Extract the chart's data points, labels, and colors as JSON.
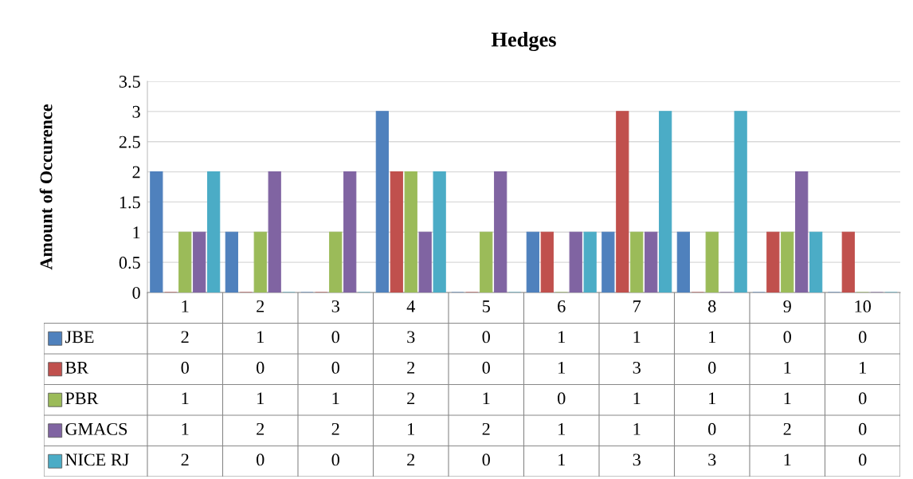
{
  "chart_data": {
    "type": "bar",
    "title": "Hedges",
    "ylabel": "Amount of Occurence",
    "categories": [
      "1",
      "2",
      "3",
      "4",
      "5",
      "6",
      "7",
      "8",
      "9",
      "10"
    ],
    "series": [
      {
        "name": "JBE",
        "color": "#4f81bd",
        "values": [
          2,
          1,
          0,
          3,
          0,
          1,
          1,
          1,
          0,
          0
        ]
      },
      {
        "name": "BR",
        "color": "#c0504d",
        "values": [
          0,
          0,
          0,
          2,
          0,
          1,
          3,
          0,
          1,
          1
        ]
      },
      {
        "name": "PBR",
        "color": "#9bbb59",
        "values": [
          1,
          1,
          1,
          2,
          1,
          0,
          1,
          1,
          1,
          0
        ]
      },
      {
        "name": "GMACS",
        "color": "#8064a2",
        "values": [
          1,
          2,
          2,
          1,
          2,
          1,
          1,
          0,
          2,
          0
        ]
      },
      {
        "name": "NICE RJ",
        "color": "#4bacc6",
        "values": [
          2,
          0,
          0,
          2,
          0,
          1,
          3,
          3,
          1,
          0
        ]
      }
    ],
    "ylim": [
      0,
      3.5
    ],
    "yticks": [
      0,
      0.5,
      1,
      1.5,
      2,
      2.5,
      3,
      3.5
    ],
    "grid": "y",
    "legend": "bottom left",
    "data_labels": true
  }
}
